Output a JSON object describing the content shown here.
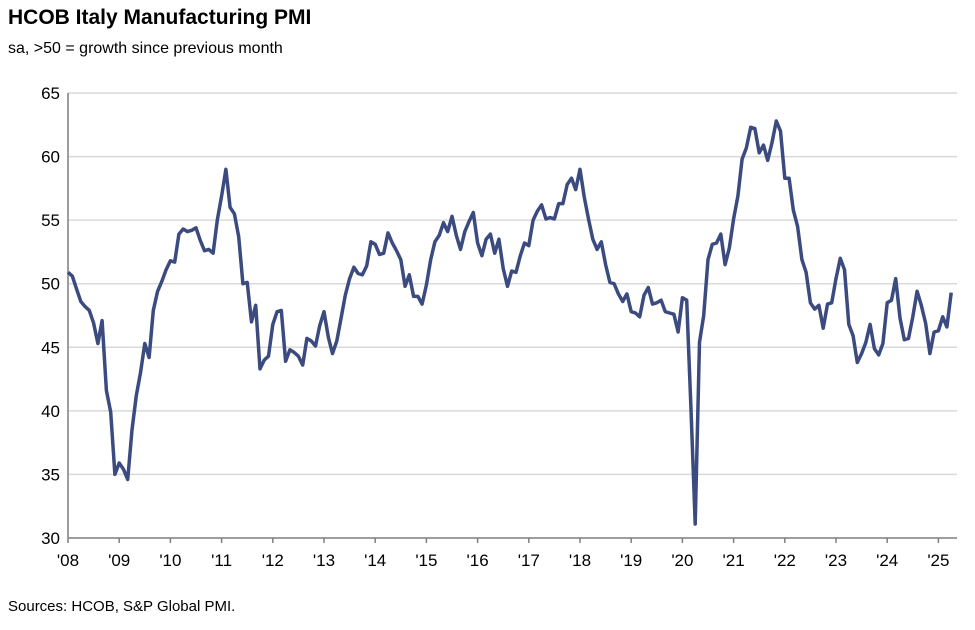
{
  "chart_data": {
    "type": "line",
    "title": "HCOB Italy Manufacturing PMI",
    "subtitle": "sa, >50 = growth since previous month",
    "source": "Sources: HCOB, S&P Global PMI.",
    "xlabel": "",
    "ylabel": "",
    "ylim": [
      30,
      65
    ],
    "yticks": [
      30,
      35,
      40,
      45,
      50,
      55,
      60,
      65
    ],
    "xtick_labels": [
      "'08",
      "'09",
      "'10",
      "'11",
      "'12",
      "'13",
      "'14",
      "'15",
      "'16",
      "'17",
      "'18",
      "'19",
      "'20",
      "'21",
      "'22",
      "'23",
      "'24",
      "'25"
    ],
    "grid": true,
    "line_color": "#3b4b80",
    "start_month": "2008-01",
    "frequency": "monthly",
    "series": [
      {
        "values": [
          50.9,
          50.6,
          49.6,
          48.6,
          48.2,
          47.9,
          46.9,
          45.3,
          47.1,
          41.6,
          39.9,
          35.0,
          35.9,
          35.4,
          34.6,
          38.5,
          41.2,
          43.0,
          45.3,
          44.2,
          47.9,
          49.4,
          50.2,
          51.1,
          51.8,
          51.7,
          53.9,
          54.3,
          54.1,
          54.2,
          54.4,
          53.4,
          52.6,
          52.7,
          52.4,
          55.0,
          56.9,
          59.0,
          56.0,
          55.5,
          53.7,
          50.0,
          50.1,
          47.0,
          48.3,
          43.3,
          44.0,
          44.3,
          46.8,
          47.8,
          47.9,
          43.9,
          44.8,
          44.6,
          44.3,
          43.6,
          45.7,
          45.5,
          45.1,
          46.7,
          47.8,
          45.8,
          44.5,
          45.5,
          47.3,
          49.1,
          50.4,
          51.3,
          50.8,
          50.7,
          51.4,
          53.3,
          53.1,
          52.3,
          52.4,
          54.0,
          53.2,
          52.6,
          51.9,
          49.8,
          50.7,
          49.0,
          49.0,
          48.4,
          49.9,
          51.9,
          53.3,
          53.8,
          54.8,
          54.1,
          55.3,
          53.8,
          52.7,
          54.1,
          54.9,
          55.6,
          53.2,
          52.2,
          53.5,
          53.9,
          52.4,
          53.5,
          51.2,
          49.8,
          51.0,
          50.9,
          52.2,
          53.2,
          53.0,
          55.0,
          55.7,
          56.2,
          55.1,
          55.2,
          55.1,
          56.3,
          56.3,
          57.8,
          58.3,
          57.4,
          59.0,
          56.8,
          55.1,
          53.5,
          52.7,
          53.3,
          51.5,
          50.1,
          50.0,
          49.2,
          48.6,
          49.2,
          47.8,
          47.7,
          47.4,
          49.1,
          49.7,
          48.4,
          48.5,
          48.7,
          47.8,
          47.7,
          47.6,
          46.2,
          48.9,
          48.7,
          40.3,
          31.1,
          45.4,
          47.5,
          51.9,
          53.1,
          53.2,
          53.9,
          51.5,
          52.8,
          55.1,
          56.9,
          59.8,
          60.7,
          62.3,
          62.2,
          60.3,
          60.9,
          59.7,
          61.1,
          62.8,
          62.0,
          58.3,
          58.3,
          55.8,
          54.5,
          51.9,
          50.9,
          48.5,
          48.0,
          48.3,
          46.5,
          48.4,
          48.5,
          50.4,
          52.0,
          51.1,
          46.8,
          45.9,
          43.8,
          44.5,
          45.4,
          46.8,
          44.9,
          44.4,
          45.3,
          48.5,
          48.7,
          50.4,
          47.3,
          45.6,
          45.7,
          47.4,
          49.4,
          48.3,
          46.9,
          44.5,
          46.2,
          46.3,
          47.4,
          46.6,
          49.3
        ]
      }
    ]
  }
}
